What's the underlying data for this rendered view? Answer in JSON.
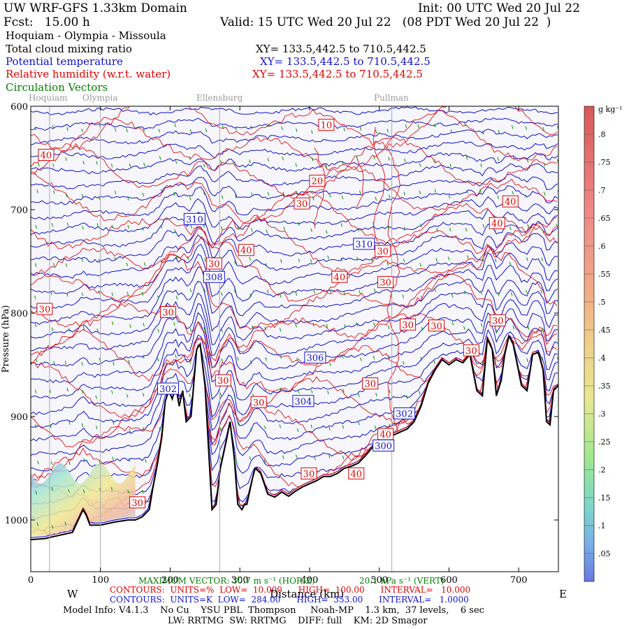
{
  "header": {
    "model_title": "UW WRF-GFS 1.33km Domain",
    "init": "Init: 00 UTC Wed 20 Jul 22",
    "fcst": "Fcst:   15.00 h",
    "valid": "Valid: 15 UTC Wed 20 Jul 22   (08 PDT Wed 20 Jul 22  )",
    "route": "Hoquiam - Olympia - Missoula",
    "fields": [
      {
        "name": "Total cloud mixing ratio",
        "xy": "XY= 133.5,442.5 to 710.5,442.5",
        "color": "#000000"
      },
      {
        "name": "Potential temperature",
        "xy": "XY= 133.5,442.5 to 710.5,442.5",
        "color": "#1010d0"
      },
      {
        "name": "Relative humidity (w.r.t. water)",
        "xy": "XY= 133.5,442.5 to 710.5,442.5",
        "color": "#e00000"
      },
      {
        "name": "Circulation Vectors",
        "xy": "",
        "color": "#008000"
      }
    ]
  },
  "chart_data": {
    "type": "cross-section",
    "title": "Hoquiam - Olympia - Missoula cross section",
    "xlabel": "Distance (km)",
    "ylabel": "Pressure (hPa)",
    "xlim": [
      0,
      757
    ],
    "ylim": [
      1050,
      600
    ],
    "x_ticks": [
      0,
      100,
      200,
      300,
      400,
      500,
      600,
      700
    ],
    "y_ticks": [
      600,
      700,
      800,
      900,
      1000
    ],
    "y_tick_labels": [
      "600",
      "700",
      "800",
      "900",
      "1000"
    ],
    "direction_left": "W",
    "direction_right": "E",
    "places": [
      {
        "name": "Hoquiam",
        "km": 27
      },
      {
        "name": "Olympia",
        "km": 100
      },
      {
        "name": "Ellensburg",
        "km": 271
      },
      {
        "name": "Pullman",
        "km": 518
      }
    ],
    "terrain_hpa": [
      [
        0,
        1019
      ],
      [
        20,
        1018
      ],
      [
        40,
        1015
      ],
      [
        60,
        1012
      ],
      [
        75,
        990
      ],
      [
        80,
        996
      ],
      [
        85,
        1005
      ],
      [
        100,
        1005
      ],
      [
        120,
        1002
      ],
      [
        140,
        1000
      ],
      [
        150,
        1000
      ],
      [
        160,
        997
      ],
      [
        170,
        990
      ],
      [
        175,
        970
      ],
      [
        182,
        945
      ],
      [
        188,
        920
      ],
      [
        193,
        885
      ],
      [
        198,
        875
      ],
      [
        203,
        883
      ],
      [
        208,
        870
      ],
      [
        213,
        890
      ],
      [
        218,
        875
      ],
      [
        223,
        905
      ],
      [
        230,
        900
      ],
      [
        238,
        835
      ],
      [
        243,
        830
      ],
      [
        250,
        870
      ],
      [
        255,
        930
      ],
      [
        260,
        990
      ],
      [
        266,
        985
      ],
      [
        272,
        950
      ],
      [
        280,
        925
      ],
      [
        286,
        905
      ],
      [
        292,
        940
      ],
      [
        297,
        985
      ],
      [
        303,
        990
      ],
      [
        307,
        985
      ],
      [
        310,
        985
      ],
      [
        318,
        960
      ],
      [
        322,
        950
      ],
      [
        330,
        955
      ],
      [
        340,
        975
      ],
      [
        350,
        978
      ],
      [
        360,
        973
      ],
      [
        370,
        977
      ],
      [
        380,
        972
      ],
      [
        390,
        968
      ],
      [
        400,
        965
      ],
      [
        410,
        962
      ],
      [
        420,
        958
      ],
      [
        430,
        958
      ],
      [
        440,
        955
      ],
      [
        450,
        950
      ],
      [
        460,
        948
      ],
      [
        470,
        945
      ],
      [
        480,
        938
      ],
      [
        490,
        930
      ],
      [
        500,
        925
      ],
      [
        510,
        922
      ],
      [
        520,
        918
      ],
      [
        530,
        915
      ],
      [
        540,
        912
      ],
      [
        550,
        905
      ],
      [
        560,
        890
      ],
      [
        570,
        868
      ],
      [
        580,
        855
      ],
      [
        590,
        845
      ],
      [
        600,
        850
      ],
      [
        610,
        845
      ],
      [
        620,
        848
      ],
      [
        630,
        840
      ],
      [
        640,
        875
      ],
      [
        648,
        880
      ],
      [
        655,
        825
      ],
      [
        662,
        835
      ],
      [
        668,
        880
      ],
      [
        675,
        865
      ],
      [
        680,
        840
      ],
      [
        686,
        822
      ],
      [
        692,
        830
      ],
      [
        698,
        850
      ],
      [
        704,
        870
      ],
      [
        712,
        875
      ],
      [
        720,
        840
      ],
      [
        728,
        838
      ],
      [
        735,
        855
      ],
      [
        740,
        905
      ],
      [
        745,
        908
      ],
      [
        750,
        875
      ],
      [
        757,
        870
      ]
    ],
    "rh_labels": [
      {
        "value": "10",
        "km": 424,
        "hpa": 618
      },
      {
        "value": "40",
        "km": 22,
        "hpa": 647
      },
      {
        "value": "20",
        "km": 411,
        "hpa": 672
      },
      {
        "value": "30",
        "km": 389,
        "hpa": 694
      },
      {
        "value": "40",
        "km": 688,
        "hpa": 692
      },
      {
        "value": "40",
        "km": 669,
        "hpa": 713
      },
      {
        "value": "30",
        "km": 505,
        "hpa": 740
      },
      {
        "value": "40",
        "km": 309,
        "hpa": 739
      },
      {
        "value": "30",
        "km": 263,
        "hpa": 752
      },
      {
        "value": "40",
        "km": 443,
        "hpa": 765
      },
      {
        "value": "30",
        "km": 509,
        "hpa": 770
      },
      {
        "value": "30",
        "km": 20,
        "hpa": 796
      },
      {
        "value": "30",
        "km": 197,
        "hpa": 799
      },
      {
        "value": "30",
        "km": 541,
        "hpa": 811
      },
      {
        "value": "30",
        "km": 582,
        "hpa": 812
      },
      {
        "value": "30",
        "km": 670,
        "hpa": 807
      },
      {
        "value": "30",
        "km": 632,
        "hpa": 836
      },
      {
        "value": "30",
        "km": 276,
        "hpa": 865
      },
      {
        "value": "30",
        "km": 487,
        "hpa": 868
      },
      {
        "value": "30",
        "km": 327,
        "hpa": 886
      },
      {
        "value": "40",
        "km": 509,
        "hpa": 917
      },
      {
        "value": "30",
        "km": 399,
        "hpa": 955
      },
      {
        "value": "40",
        "km": 467,
        "hpa": 955
      },
      {
        "value": "30",
        "km": 153,
        "hpa": 983
      }
    ],
    "theta_labels": [
      {
        "value": "310",
        "km": 235,
        "hpa": 709
      },
      {
        "value": "310",
        "km": 478,
        "hpa": 733
      },
      {
        "value": "308",
        "km": 263,
        "hpa": 765
      },
      {
        "value": "306",
        "km": 408,
        "hpa": 843
      },
      {
        "value": "302",
        "km": 197,
        "hpa": 873
      },
      {
        "value": "304",
        "km": 391,
        "hpa": 885
      },
      {
        "value": "302",
        "km": 536,
        "hpa": 897
      },
      {
        "value": "300",
        "km": 506,
        "hpa": 928
      }
    ],
    "colorbar": {
      "units": "g kg⁻¹",
      "ticks": [
        ".05",
        ".1",
        ".15",
        ".2",
        ".25",
        ".3",
        ".35",
        ".4",
        ".45",
        ".5",
        ".55",
        ".6",
        ".65",
        ".7",
        ".75",
        ".8"
      ]
    }
  },
  "footer": {
    "max_vector": "MAXIMUM VECTOR: 30.7 m s⁻¹ (HORIZ)",
    "max_vector_vert": "20.1 hPa s⁻¹ (VERT)",
    "rh_contours": "CONTOURS:  UNITS=%  LOW=  10.000      HIGH=  100.00      INTERVAL=   10.000",
    "theta_contours": "CONTOURS:  UNITS=K  LOW=  284.00      HIGH=  353.00      INTERVAL=   1.0000",
    "distance_label": "Distance (km)",
    "model_info": "Model Info: V4.1.3    No Cu    YSU PBL  Thompson     Noah-MP    1.3 km,  37 levels,    6 sec",
    "physics": "LW: RRTMG  SW: RRTMG    DIFF: full    KM: 2D Smagor"
  }
}
